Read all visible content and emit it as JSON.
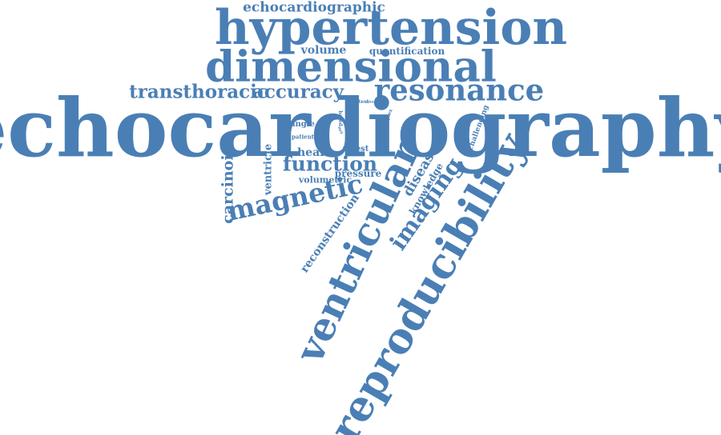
{
  "color": "#4a7fb5",
  "words": {
    "echocardiography": "echocardiography",
    "hypertension": "hypertension",
    "dimensional": "dimensional",
    "echocardiographic": "echocardiographic",
    "volume": "volume",
    "quantification": "quantification",
    "transthoracic": "transthoracic",
    "accuracy": "accuracy",
    "resonance": "resonance",
    "reproducibility": "reproducibility",
    "ventricular": "ventricular",
    "magnetic": "magnetic",
    "function": "function",
    "imaging": "imaging",
    "reconstruction": "reconstruction",
    "carcinoid": "carcinoid",
    "ventricle": "ventricle",
    "heart": "heart",
    "retest": "retest",
    "pressure": "pressure",
    "volumetric": "volumetric",
    "disease": "disease",
    "knowledge": "knowledge",
    "result": "result",
    "single": "single",
    "patient": "patient",
    "test": "test",
    "analysis": "analysis",
    "complex": "complex",
    "challenging": "challenging",
    "based": "based",
    "mri": "mri"
  }
}
